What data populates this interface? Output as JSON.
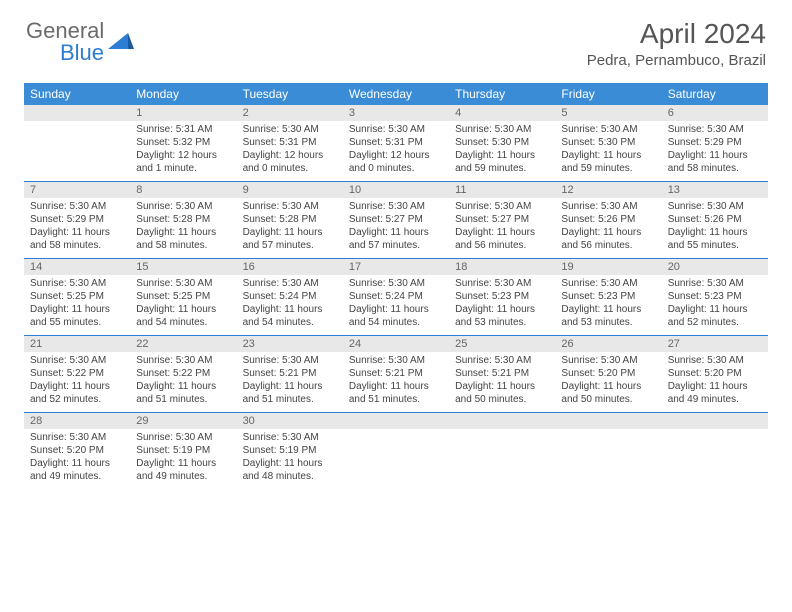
{
  "logo": {
    "text_general": "General",
    "text_blue": "Blue"
  },
  "title": "April 2024",
  "location": "Pedra, Pernambuco, Brazil",
  "colors": {
    "header_bg": "#3a8cd6",
    "header_text": "#ffffff",
    "daynum_bg": "#e8e8e8",
    "daynum_text": "#666666",
    "body_text": "#444444",
    "row_border": "#2d7dd2",
    "logo_gray": "#6b6b6b",
    "logo_blue": "#2d7dd2"
  },
  "day_headers": [
    "Sunday",
    "Monday",
    "Tuesday",
    "Wednesday",
    "Thursday",
    "Friday",
    "Saturday"
  ],
  "weeks": [
    [
      null,
      {
        "n": "1",
        "sunrise": "5:31 AM",
        "sunset": "5:32 PM",
        "daylight": "12 hours and 1 minute."
      },
      {
        "n": "2",
        "sunrise": "5:30 AM",
        "sunset": "5:31 PM",
        "daylight": "12 hours and 0 minutes."
      },
      {
        "n": "3",
        "sunrise": "5:30 AM",
        "sunset": "5:31 PM",
        "daylight": "12 hours and 0 minutes."
      },
      {
        "n": "4",
        "sunrise": "5:30 AM",
        "sunset": "5:30 PM",
        "daylight": "11 hours and 59 minutes."
      },
      {
        "n": "5",
        "sunrise": "5:30 AM",
        "sunset": "5:30 PM",
        "daylight": "11 hours and 59 minutes."
      },
      {
        "n": "6",
        "sunrise": "5:30 AM",
        "sunset": "5:29 PM",
        "daylight": "11 hours and 58 minutes."
      }
    ],
    [
      {
        "n": "7",
        "sunrise": "5:30 AM",
        "sunset": "5:29 PM",
        "daylight": "11 hours and 58 minutes."
      },
      {
        "n": "8",
        "sunrise": "5:30 AM",
        "sunset": "5:28 PM",
        "daylight": "11 hours and 58 minutes."
      },
      {
        "n": "9",
        "sunrise": "5:30 AM",
        "sunset": "5:28 PM",
        "daylight": "11 hours and 57 minutes."
      },
      {
        "n": "10",
        "sunrise": "5:30 AM",
        "sunset": "5:27 PM",
        "daylight": "11 hours and 57 minutes."
      },
      {
        "n": "11",
        "sunrise": "5:30 AM",
        "sunset": "5:27 PM",
        "daylight": "11 hours and 56 minutes."
      },
      {
        "n": "12",
        "sunrise": "5:30 AM",
        "sunset": "5:26 PM",
        "daylight": "11 hours and 56 minutes."
      },
      {
        "n": "13",
        "sunrise": "5:30 AM",
        "sunset": "5:26 PM",
        "daylight": "11 hours and 55 minutes."
      }
    ],
    [
      {
        "n": "14",
        "sunrise": "5:30 AM",
        "sunset": "5:25 PM",
        "daylight": "11 hours and 55 minutes."
      },
      {
        "n": "15",
        "sunrise": "5:30 AM",
        "sunset": "5:25 PM",
        "daylight": "11 hours and 54 minutes."
      },
      {
        "n": "16",
        "sunrise": "5:30 AM",
        "sunset": "5:24 PM",
        "daylight": "11 hours and 54 minutes."
      },
      {
        "n": "17",
        "sunrise": "5:30 AM",
        "sunset": "5:24 PM",
        "daylight": "11 hours and 54 minutes."
      },
      {
        "n": "18",
        "sunrise": "5:30 AM",
        "sunset": "5:23 PM",
        "daylight": "11 hours and 53 minutes."
      },
      {
        "n": "19",
        "sunrise": "5:30 AM",
        "sunset": "5:23 PM",
        "daylight": "11 hours and 53 minutes."
      },
      {
        "n": "20",
        "sunrise": "5:30 AM",
        "sunset": "5:23 PM",
        "daylight": "11 hours and 52 minutes."
      }
    ],
    [
      {
        "n": "21",
        "sunrise": "5:30 AM",
        "sunset": "5:22 PM",
        "daylight": "11 hours and 52 minutes."
      },
      {
        "n": "22",
        "sunrise": "5:30 AM",
        "sunset": "5:22 PM",
        "daylight": "11 hours and 51 minutes."
      },
      {
        "n": "23",
        "sunrise": "5:30 AM",
        "sunset": "5:21 PM",
        "daylight": "11 hours and 51 minutes."
      },
      {
        "n": "24",
        "sunrise": "5:30 AM",
        "sunset": "5:21 PM",
        "daylight": "11 hours and 51 minutes."
      },
      {
        "n": "25",
        "sunrise": "5:30 AM",
        "sunset": "5:21 PM",
        "daylight": "11 hours and 50 minutes."
      },
      {
        "n": "26",
        "sunrise": "5:30 AM",
        "sunset": "5:20 PM",
        "daylight": "11 hours and 50 minutes."
      },
      {
        "n": "27",
        "sunrise": "5:30 AM",
        "sunset": "5:20 PM",
        "daylight": "11 hours and 49 minutes."
      }
    ],
    [
      {
        "n": "28",
        "sunrise": "5:30 AM",
        "sunset": "5:20 PM",
        "daylight": "11 hours and 49 minutes."
      },
      {
        "n": "29",
        "sunrise": "5:30 AM",
        "sunset": "5:19 PM",
        "daylight": "11 hours and 49 minutes."
      },
      {
        "n": "30",
        "sunrise": "5:30 AM",
        "sunset": "5:19 PM",
        "daylight": "11 hours and 48 minutes."
      },
      null,
      null,
      null,
      null
    ]
  ],
  "labels": {
    "sunrise": "Sunrise:",
    "sunset": "Sunset:",
    "daylight": "Daylight:"
  }
}
